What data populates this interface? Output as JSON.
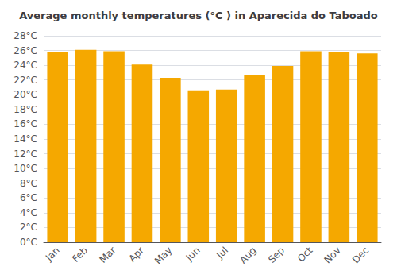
{
  "chart_data": {
    "type": "bar",
    "title": "Average monthly temperatures (°C ) in Aparecida do Taboado",
    "categories": [
      "Jan",
      "Feb",
      "Mar",
      "Apr",
      "May",
      "Jun",
      "Jul",
      "Aug",
      "Sep",
      "Oct",
      "Nov",
      "Dec"
    ],
    "values": [
      25.8,
      26.1,
      25.9,
      24.1,
      22.3,
      20.6,
      20.7,
      22.7,
      23.9,
      25.9,
      25.8,
      25.6
    ],
    "color": "#F5A800",
    "ylim": [
      0,
      28
    ],
    "yticks": [
      {
        "value": 0,
        "label": "0°C"
      },
      {
        "value": 2,
        "label": "2°C"
      },
      {
        "value": 4,
        "label": "4°C"
      },
      {
        "value": 6,
        "label": "6°C"
      },
      {
        "value": 8,
        "label": "8°C"
      },
      {
        "value": 10,
        "label": "10°C"
      },
      {
        "value": 12,
        "label": "12°C"
      },
      {
        "value": 14,
        "label": "14°C"
      },
      {
        "value": 16,
        "label": "16°C"
      },
      {
        "value": 18,
        "label": "18°C"
      },
      {
        "value": 20,
        "label": "20°C"
      },
      {
        "value": 22,
        "label": "22°C"
      },
      {
        "value": 24,
        "label": "24°C"
      },
      {
        "value": 26,
        "label": "26°C"
      },
      {
        "value": 28,
        "label": "28°C"
      }
    ],
    "grid": true
  }
}
